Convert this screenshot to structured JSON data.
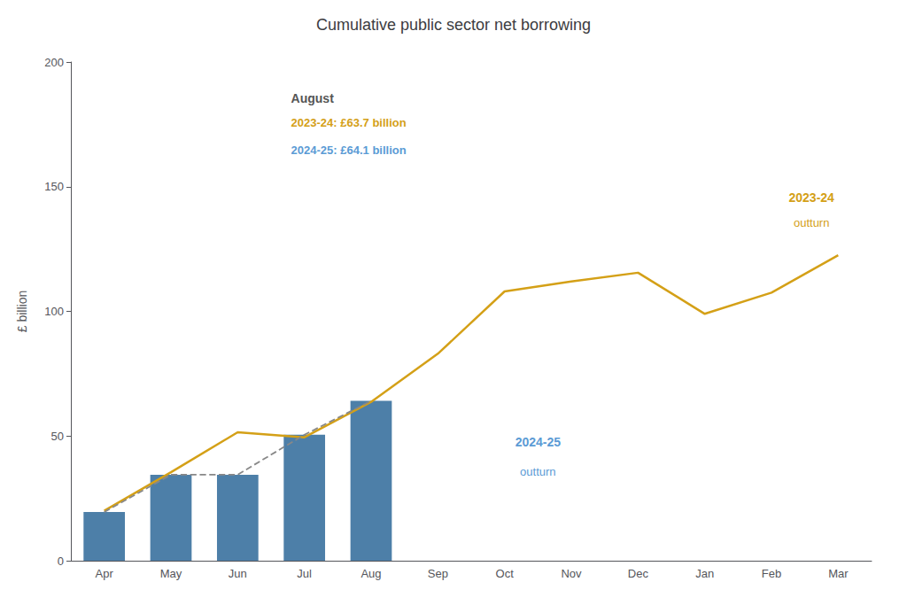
{
  "chart_data": {
    "type": "bar",
    "title": "Cumulative public sector net borrowing",
    "y_label": "£ billion",
    "categories": [
      "Apr",
      "May",
      "Jun",
      "Jul",
      "Aug",
      "Sep",
      "Oct",
      "Nov",
      "Dec",
      "Jan",
      "Feb",
      "Mar"
    ],
    "series": [
      {
        "type": "bar",
        "color": "#4d7fa8",
        "values": [
          19.5,
          34.5,
          34.5,
          50.5,
          64.1,
          null,
          null,
          null,
          null,
          null,
          null,
          null
        ]
      },
      {
        "type": "line",
        "color": "#888888",
        "line_style": "dashed",
        "values": [
          19.5,
          34.5,
          34.5,
          50.5,
          64.1,
          null,
          null,
          null,
          null,
          null,
          null,
          null
        ]
      },
      {
        "type": "line",
        "color": "#d4a017",
        "line_style": "solid",
        "values": [
          20.0,
          35.5,
          51.5,
          49.5,
          63.7,
          83.0,
          108.0,
          112.0,
          115.5,
          99.0,
          107.5,
          122.5
        ]
      }
    ],
    "annotations": [
      {
        "text": "August"
      },
      {
        "text": "2023-24: £63.7 billion",
        "color": "#d4a017"
      },
      {
        "text": "2024-25: £64.1 billion",
        "color": "#5b9bd5"
      },
      {
        "text": "2023-24",
        "color": "#d4a017"
      },
      {
        "text": "outturn",
        "color": "#d4a017"
      },
      {
        "text": "2024-25",
        "color": "#5b9bd5"
      },
      {
        "text": "outturn",
        "color": "#5b9bd5"
      }
    ],
    "ylim": [
      0,
      200
    ],
    "yticks": [
      0,
      50,
      100,
      150,
      200
    ],
    "grid": false
  }
}
